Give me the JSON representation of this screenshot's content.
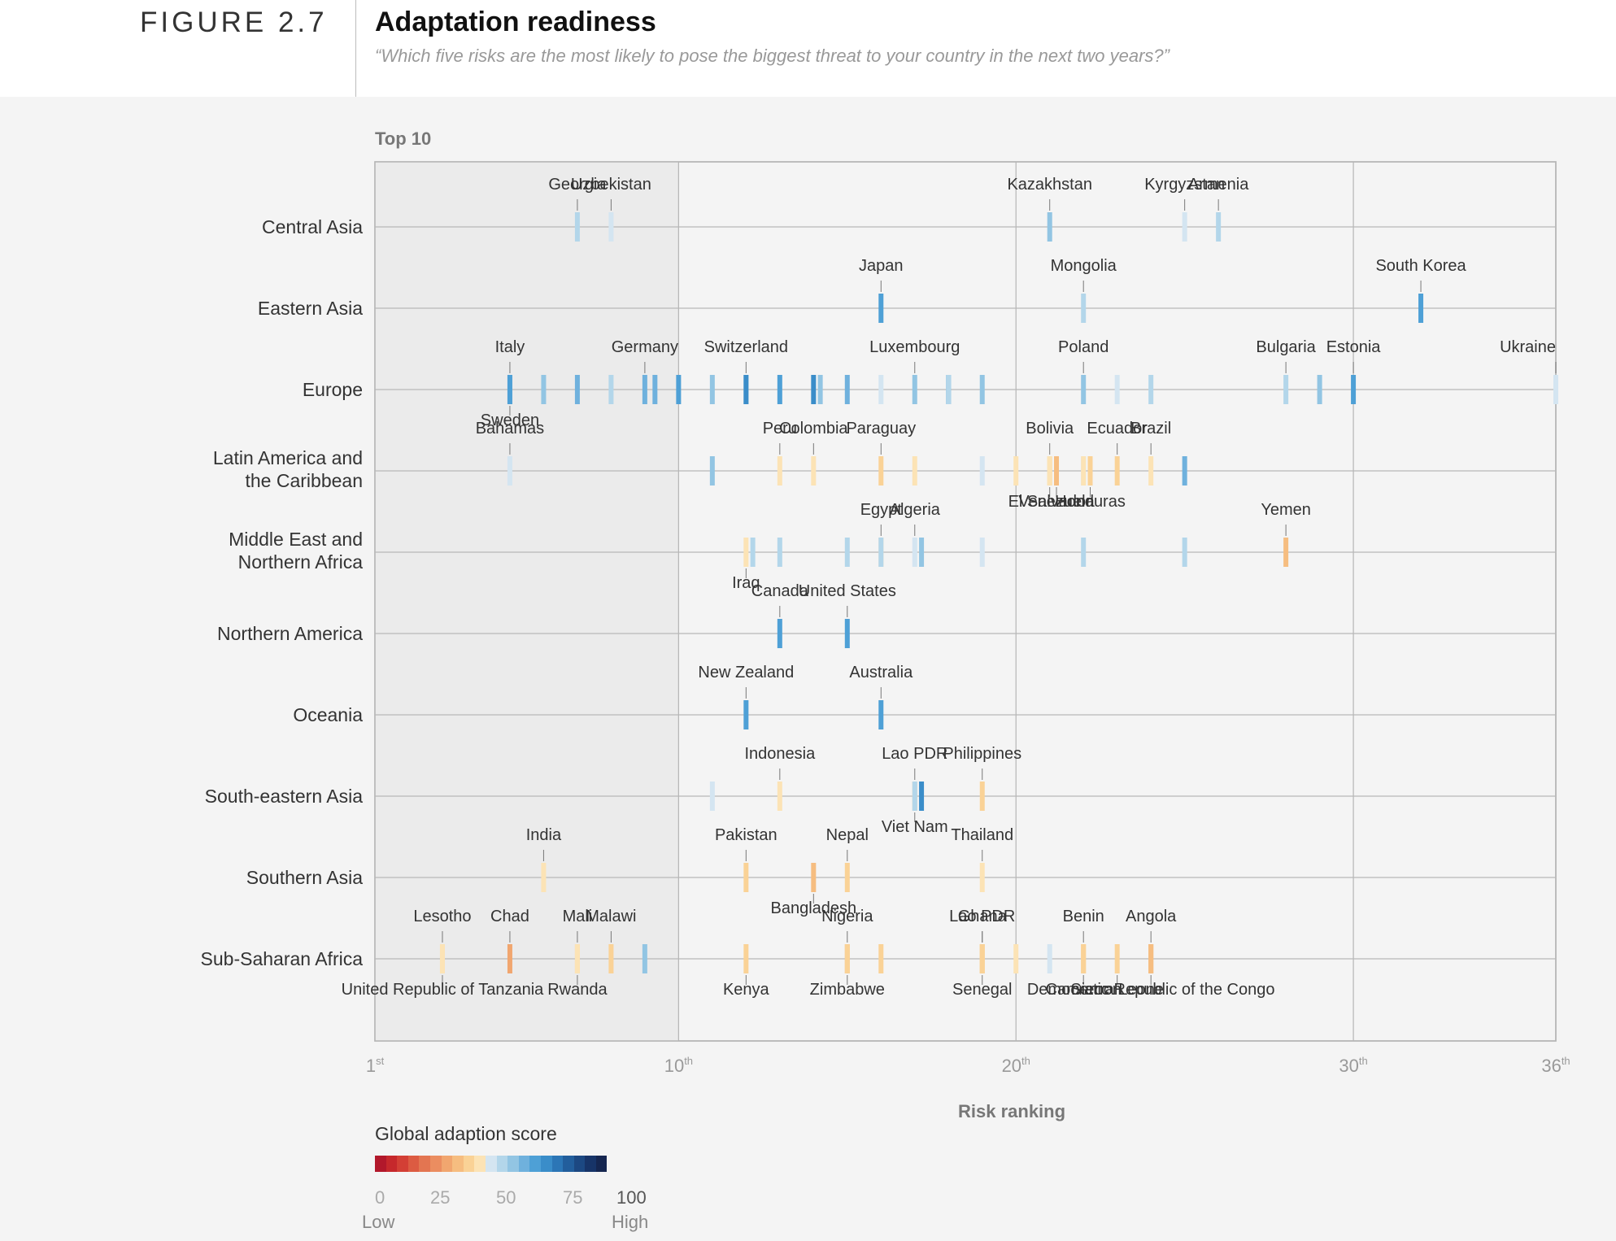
{
  "figure": {
    "number": "FIGURE 2.7",
    "title": "Adaptation readiness",
    "subtitle": "“Which five risks are the most likely to pose the biggest threat to your country in the next two years?”"
  },
  "chart_data": {
    "type": "scatter",
    "panel_label": "Top 10",
    "xlabel": "Risk ranking",
    "xlim": [
      1,
      36
    ],
    "x_ticks": [
      {
        "value": 1,
        "num": "1",
        "sup": "st"
      },
      {
        "value": 10,
        "num": "10",
        "sup": "th"
      },
      {
        "value": 20,
        "num": "20",
        "sup": "th"
      },
      {
        "value": 30,
        "num": "30",
        "sup": "th"
      },
      {
        "value": 36,
        "num": "36",
        "sup": "th"
      }
    ],
    "highlight_range": [
      1,
      10
    ],
    "regions": [
      "Central Asia",
      "Eastern Asia",
      "Europe",
      "Latin America and the Caribbean",
      "Middle East and Northern Africa",
      "Northern America",
      "Oceania",
      "South-eastern Asia",
      "Southern Asia",
      "Sub-Saharan Africa"
    ],
    "region_lines": [
      [
        "Central Asia"
      ],
      [
        "Eastern Asia"
      ],
      [
        "Europe"
      ],
      [
        "Latin America and",
        "the Caribbean"
      ],
      [
        "Middle East and",
        "Northern Africa"
      ],
      [
        "Northern America"
      ],
      [
        "Oceania"
      ],
      [
        "South-eastern Asia"
      ],
      [
        "Southern Asia"
      ],
      [
        "Sub-Saharan Africa"
      ]
    ],
    "legend": {
      "title": "Global adaption score",
      "ticks": [
        "0",
        "25",
        "50",
        "75",
        "100"
      ],
      "low": "Low",
      "high": "High",
      "colors": [
        "#b2182b",
        "#c6282c",
        "#d33f35",
        "#dc5b42",
        "#e37551",
        "#eb8d60",
        "#f1a66f",
        "#f6bd80",
        "#fad296",
        "#fce3b5",
        "#d4e5f1",
        "#b3d6ea",
        "#92c5e3",
        "#6fb1dd",
        "#4ea0d6",
        "#3a8dc9",
        "#2c76b6",
        "#225e9c",
        "#1c4882",
        "#173468",
        "#152650"
      ]
    },
    "points": [
      {
        "region": 0,
        "x": 7,
        "score": 55,
        "label": "Georgia",
        "pos": "above"
      },
      {
        "region": 0,
        "x": 8,
        "score": 51,
        "label": "Uzbekistan",
        "pos": "above"
      },
      {
        "region": 0,
        "x": 21,
        "score": 60,
        "label": "Kazakhstan",
        "pos": "above"
      },
      {
        "region": 0,
        "x": 25,
        "score": 51,
        "label": "Kyrgyzstan",
        "pos": "above"
      },
      {
        "region": 0,
        "x": 26,
        "score": 55,
        "label": "Armenia",
        "pos": "above"
      },
      {
        "region": 1,
        "x": 16,
        "score": 70,
        "label": "Japan",
        "pos": "above"
      },
      {
        "region": 1,
        "x": 22,
        "score": 54,
        "label": "Mongolia",
        "pos": "above"
      },
      {
        "region": 1,
        "x": 32,
        "score": 70,
        "label": "South Korea",
        "pos": "above"
      },
      {
        "region": 2,
        "x": 5,
        "score": 58,
        "label": "Italy",
        "pos": "above"
      },
      {
        "region": 2,
        "x": 5,
        "score": 72,
        "label": "Sweden",
        "pos": "below"
      },
      {
        "region": 2,
        "x": 6,
        "score": 62
      },
      {
        "region": 2,
        "x": 7,
        "score": 67
      },
      {
        "region": 2,
        "x": 8,
        "score": 55
      },
      {
        "region": 2,
        "x": 9,
        "score": 64,
        "label": "Germany",
        "pos": "above"
      },
      {
        "region": 2,
        "x": 9.3,
        "score": 67
      },
      {
        "region": 2,
        "x": 10,
        "score": 72
      },
      {
        "region": 2,
        "x": 11,
        "score": 62
      },
      {
        "region": 2,
        "x": 12,
        "score": 60,
        "label": "Switzerland",
        "pos": "above"
      },
      {
        "region": 2,
        "x": 12,
        "score": 74
      },
      {
        "region": 2,
        "x": 13,
        "score": 70
      },
      {
        "region": 2,
        "x": 14,
        "score": 76
      },
      {
        "region": 2,
        "x": 14.2,
        "score": 58
      },
      {
        "region": 2,
        "x": 15,
        "score": 65
      },
      {
        "region": 2,
        "x": 16,
        "score": 50
      },
      {
        "region": 2,
        "x": 17,
        "score": 62,
        "label": "Luxembourg",
        "pos": "above"
      },
      {
        "region": 2,
        "x": 18,
        "score": 70
      },
      {
        "region": 2,
        "x": 18,
        "score": 54
      },
      {
        "region": 2,
        "x": 19,
        "score": 58
      },
      {
        "region": 2,
        "x": 22,
        "score": 62,
        "label": "Poland",
        "pos": "above"
      },
      {
        "region": 2,
        "x": 23,
        "score": 52
      },
      {
        "region": 2,
        "x": 24,
        "score": 56
      },
      {
        "region": 2,
        "x": 28,
        "score": 55,
        "label": "Bulgaria",
        "pos": "above"
      },
      {
        "region": 2,
        "x": 29,
        "score": 62
      },
      {
        "region": 2,
        "x": 30,
        "score": 68,
        "label": "Estonia",
        "pos": "above"
      },
      {
        "region": 2,
        "x": 36,
        "score": 52,
        "label": "Ukraine",
        "pos": "above"
      },
      {
        "region": 3,
        "x": 5,
        "score": 48,
        "label": "Bahamas",
        "pos": "above"
      },
      {
        "region": 3,
        "x": 11,
        "score": 60
      },
      {
        "region": 3,
        "x": 13,
        "score": 46,
        "label": "Peru",
        "pos": "above"
      },
      {
        "region": 3,
        "x": 14,
        "score": 45,
        "label": "Colombia",
        "pos": "above"
      },
      {
        "region": 3,
        "x": 16,
        "score": 42,
        "label": "Paraguay",
        "pos": "above"
      },
      {
        "region": 3,
        "x": 17,
        "score": 46
      },
      {
        "region": 3,
        "x": 19,
        "score": 49
      },
      {
        "region": 3,
        "x": 20,
        "score": 47
      },
      {
        "region": 3,
        "x": 21,
        "score": 42,
        "label": "Bolivia",
        "pos": "above"
      },
      {
        "region": 3,
        "x": 21,
        "score": 44,
        "label": "El Salvador",
        "pos": "below"
      },
      {
        "region": 3,
        "x": 21.2,
        "score": 36,
        "label": "Venezuela",
        "pos": "below"
      },
      {
        "region": 3,
        "x": 22,
        "score": 52
      },
      {
        "region": 3,
        "x": 22,
        "score": 46
      },
      {
        "region": 3,
        "x": 22.2,
        "score": 38,
        "label": "Honduras",
        "pos": "below"
      },
      {
        "region": 3,
        "x": 23,
        "score": 40,
        "label": "Ecuador",
        "pos": "above"
      },
      {
        "region": 3,
        "x": 24,
        "score": 47,
        "label": "Brazil",
        "pos": "above"
      },
      {
        "region": 3,
        "x": 25,
        "score": 64
      },
      {
        "region": 4,
        "x": 12,
        "score": 43,
        "label": "Iraq",
        "pos": "below"
      },
      {
        "region": 4,
        "x": 12.2,
        "score": 53
      },
      {
        "region": 4,
        "x": 13,
        "score": 54
      },
      {
        "region": 4,
        "x": 15,
        "score": 53
      },
      {
        "region": 4,
        "x": 16,
        "score": 47,
        "label": "Egypt",
        "pos": "above"
      },
      {
        "region": 4,
        "x": 16,
        "score": 56
      },
      {
        "region": 4,
        "x": 17,
        "score": 50,
        "label": "Algeria",
        "pos": "above"
      },
      {
        "region": 4,
        "x": 17.2,
        "score": 58
      },
      {
        "region": 4,
        "x": 19,
        "score": 51
      },
      {
        "region": 4,
        "x": 22,
        "score": 55
      },
      {
        "region": 4,
        "x": 25,
        "score": 55
      },
      {
        "region": 4,
        "x": 28,
        "score": 36,
        "label": "Yemen",
        "pos": "above"
      },
      {
        "region": 5,
        "x": 13,
        "score": 70,
        "label": "Canada",
        "pos": "above"
      },
      {
        "region": 5,
        "x": 15,
        "score": 69,
        "label": "United States",
        "pos": "above"
      },
      {
        "region": 6,
        "x": 12,
        "score": 72,
        "label": "New Zealand",
        "pos": "above"
      },
      {
        "region": 6,
        "x": 16,
        "score": 70,
        "label": "Australia",
        "pos": "above"
      },
      {
        "region": 7,
        "x": 11,
        "score": 51
      },
      {
        "region": 7,
        "x": 13,
        "score": 46,
        "label": "Indonesia",
        "pos": "above"
      },
      {
        "region": 7,
        "x": 17,
        "score": 42,
        "label": "Lao PDR",
        "pos": "above"
      },
      {
        "region": 7,
        "x": 17.2,
        "score": 75
      },
      {
        "region": 7,
        "x": 17,
        "score": 57,
        "label": "Viet Nam",
        "pos": "below"
      },
      {
        "region": 7,
        "x": 19,
        "score": 42,
        "label": "Philippines",
        "pos": "above"
      },
      {
        "region": 8,
        "x": 6,
        "score": 44,
        "label": "India",
        "pos": "above"
      },
      {
        "region": 8,
        "x": 12,
        "score": 40,
        "label": "Pakistan",
        "pos": "above"
      },
      {
        "region": 8,
        "x": 14,
        "score": 36,
        "label": "Bangladesh",
        "pos": "below"
      },
      {
        "region": 8,
        "x": 15,
        "score": 42,
        "label": "Nepal",
        "pos": "above"
      },
      {
        "region": 8,
        "x": 19,
        "score": 45,
        "label": "Thailand",
        "pos": "above"
      },
      {
        "region": 9,
        "x": 3,
        "score": 41,
        "label": "Lesotho",
        "pos": "above"
      },
      {
        "region": 9,
        "x": 3,
        "score": 43,
        "label": "United Republic of Tanzania",
        "pos": "below"
      },
      {
        "region": 9,
        "x": 5,
        "score": 28,
        "label": "Chad",
        "pos": "above"
      },
      {
        "region": 9,
        "x": 7,
        "score": 38,
        "label": "Mali",
        "pos": "above"
      },
      {
        "region": 9,
        "x": 7,
        "score": 45,
        "label": "Rwanda",
        "pos": "below"
      },
      {
        "region": 9,
        "x": 8,
        "score": 38,
        "label": "Malawi",
        "pos": "above"
      },
      {
        "region": 9,
        "x": 9,
        "score": 58
      },
      {
        "region": 9,
        "x": 12,
        "score": 41,
        "label": "Kenya",
        "pos": "below"
      },
      {
        "region": 9,
        "x": 15,
        "score": 36,
        "label": "Nigeria",
        "pos": "above"
      },
      {
        "region": 9,
        "x": 15,
        "score": 38,
        "label": "Zimbabwe",
        "pos": "below"
      },
      {
        "region": 9,
        "x": 16,
        "score": 39
      },
      {
        "region": 9,
        "x": 19,
        "score": 40,
        "label": "Lao PDR",
        "pos": "above"
      },
      {
        "region": 9,
        "x": 19,
        "score": 41,
        "label": "Ghana",
        "pos": "above"
      },
      {
        "region": 9,
        "x": 19,
        "score": 42,
        "label": "Senegal",
        "pos": "below"
      },
      {
        "region": 9,
        "x": 20,
        "score": 46
      },
      {
        "region": 9,
        "x": 21,
        "score": 52
      },
      {
        "region": 9,
        "x": 22,
        "score": 38,
        "label": "Benin",
        "pos": "above"
      },
      {
        "region": 9,
        "x": 22,
        "score": 40,
        "label": "Cameroon",
        "pos": "below"
      },
      {
        "region": 9,
        "x": 23,
        "score": 38,
        "label": "Sierra Leone",
        "pos": "below"
      },
      {
        "region": 9,
        "x": 24,
        "score": 36,
        "label": "Angola",
        "pos": "above"
      },
      {
        "region": 9,
        "x": 24,
        "score": 33,
        "label": "Democratic Republic of the Congo",
        "pos": "below"
      }
    ]
  }
}
